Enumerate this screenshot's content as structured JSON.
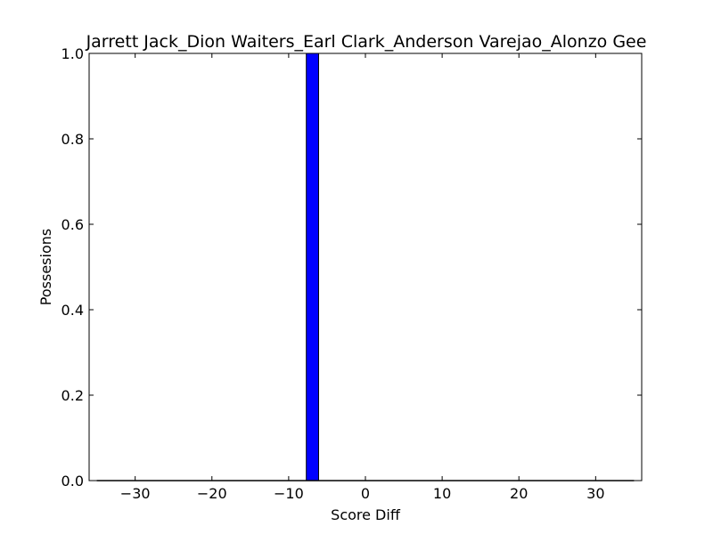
{
  "chart_data": {
    "type": "bar",
    "title": "Jarrett Jack_Dion Waiters_Earl Clark_Anderson Varejao_Alonzo Gee",
    "xlabel": "Score Diff",
    "ylabel": "Possesions",
    "xlim": [
      -36,
      36
    ],
    "ylim": [
      0,
      1.0
    ],
    "xticks": [
      -30,
      -20,
      -10,
      0,
      10,
      20,
      30
    ],
    "yticks": [
      0.0,
      0.2,
      0.4,
      0.6,
      0.8,
      1.0
    ],
    "xtick_labels": [
      "−30",
      "−20",
      "−10",
      "0",
      "10",
      "20",
      "30"
    ],
    "ytick_labels": [
      "0.0",
      "0.2",
      "0.4",
      "0.6",
      "0.8",
      "1.0"
    ],
    "bin_width": 1.6,
    "bars": [
      {
        "x_start": -7.7,
        "width": 1.6,
        "value": 1.0
      }
    ],
    "bar_color": "#0000ff",
    "edge_color": "#000000",
    "grid": false
  }
}
